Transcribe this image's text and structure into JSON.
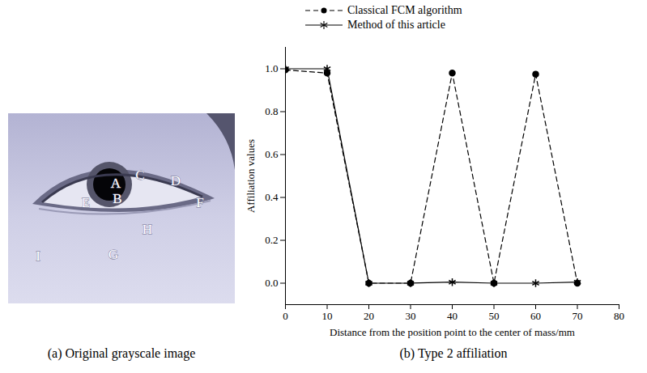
{
  "image_panel": {
    "caption": "(a) Original grayscale image",
    "labels": [
      "A",
      "B",
      "C",
      "D",
      "E",
      "F",
      "G",
      "H",
      "I"
    ]
  },
  "chart_data": {
    "type": "line",
    "caption": "(b) Type 2 affiliation",
    "x_label": "Distance from the position point to the center of mass/mm",
    "y_label": "Affiliation values",
    "x": [
      0,
      10,
      20,
      30,
      40,
      50,
      60,
      70
    ],
    "series": [
      {
        "name": "Classical FCM algorithm",
        "color": "#000000",
        "marker": "circle",
        "line_style": "dashed",
        "values": [
          0.995,
          0.98,
          0.0,
          0.0,
          0.98,
          0.0,
          0.975,
          0.0
        ]
      },
      {
        "name": "Method of this article",
        "color": "#000000",
        "marker": "asterisk",
        "line_style": "solid",
        "values": [
          1.0,
          1.0,
          0.0,
          0.0,
          0.005,
          0.0,
          0.0,
          0.005
        ]
      }
    ],
    "xlim": [
      0,
      80
    ],
    "xticks": [
      0,
      10,
      20,
      30,
      40,
      50,
      60,
      70,
      80
    ],
    "ylim": [
      -0.1,
      1.1
    ],
    "yticks": [
      {
        "value": 0,
        "label": "0.0"
      },
      0.2,
      0.4,
      0.6,
      0.8,
      {
        "value": 1,
        "label": "1.0"
      }
    ],
    "grid": false,
    "legend": "top"
  }
}
